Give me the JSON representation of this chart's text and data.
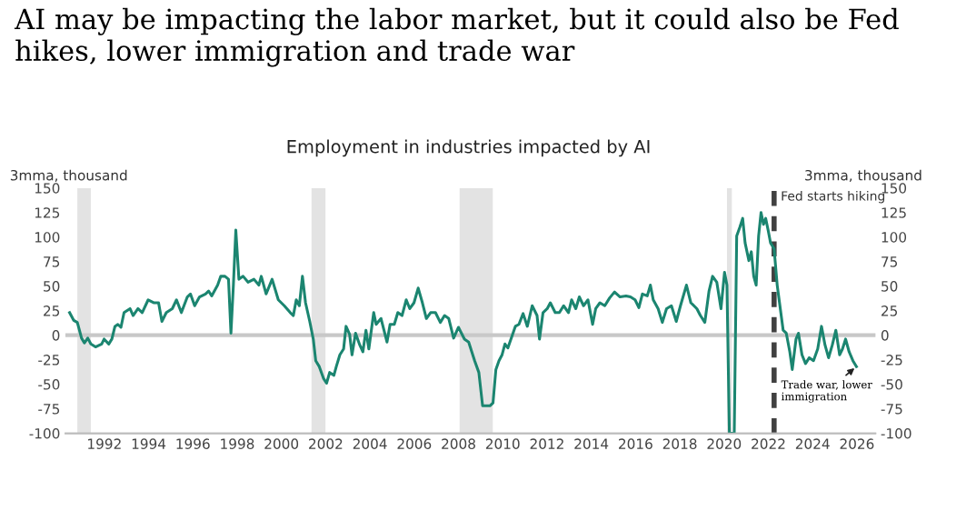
{
  "chart_data": {
    "type": "line",
    "title": "AI may be impacting the labor market, but it could also be Fed hikes, lower immigration and trade war",
    "subtitle": "Employment in industries impacted by AI",
    "ylabel": "3mma, thousand",
    "y2label": "3mma, thousand",
    "x": [
      1990.43,
      1990.62,
      1990.78,
      1990.97,
      1991.1,
      1991.25,
      1991.39,
      1991.6,
      1991.88,
      1991.99,
      1992.2,
      1992.34,
      1992.48,
      1992.61,
      1992.75,
      1992.89,
      1993.16,
      1993.3,
      1993.52,
      1993.71,
      1993.98,
      1994.25,
      1994.45,
      1994.6,
      1994.8,
      1995.07,
      1995.26,
      1995.48,
      1995.75,
      1995.89,
      1996.08,
      1996.3,
      1996.57,
      1996.71,
      1996.85,
      1997.12,
      1997.26,
      1997.45,
      1997.61,
      1997.72,
      1997.83,
      1997.94,
      1998.08,
      1998.27,
      1998.49,
      1998.76,
      1998.98,
      1999.09,
      1999.31,
      1999.58,
      1999.86,
      2000.13,
      2000.4,
      2000.54,
      2000.67,
      2000.81,
      2000.95,
      2001.09,
      2001.28,
      2001.44,
      2001.55,
      2001.71,
      2001.9,
      2002.04,
      2002.18,
      2002.37,
      2002.48,
      2002.64,
      2002.81,
      2002.92,
      2003.08,
      2003.19,
      2003.35,
      2003.54,
      2003.68,
      2003.82,
      2003.95,
      2004.17,
      2004.28,
      2004.5,
      2004.77,
      2004.91,
      2005.1,
      2005.26,
      2005.45,
      2005.64,
      2005.8,
      2005.99,
      2006.18,
      2006.37,
      2006.55,
      2006.74,
      2006.96,
      2007.18,
      2007.37,
      2007.56,
      2007.78,
      2008.0,
      2008.27,
      2008.46,
      2008.73,
      2008.92,
      2009.09,
      2009.3,
      2009.42,
      2009.56,
      2009.69,
      2009.83,
      2009.97,
      2010.1,
      2010.23,
      2010.37,
      2010.57,
      2010.73,
      2010.92,
      2011.11,
      2011.33,
      2011.55,
      2011.66,
      2011.82,
      2012.01,
      2012.15,
      2012.37,
      2012.56,
      2012.75,
      2012.97,
      2013.11,
      2013.3,
      2013.46,
      2013.65,
      2013.85,
      2014.06,
      2014.2,
      2014.39,
      2014.61,
      2014.83,
      2015.05,
      2015.3,
      2015.57,
      2015.77,
      2015.98,
      2016.15,
      2016.31,
      2016.53,
      2016.67,
      2016.8,
      2017.02,
      2017.21,
      2017.4,
      2017.62,
      2017.84,
      2018.03,
      2018.3,
      2018.5,
      2018.77,
      2018.93,
      2019.13,
      2019.32,
      2019.48,
      2019.67,
      2019.86,
      2020.02,
      2020.13,
      2020.24,
      2020.35,
      2020.46,
      2020.57,
      2020.71,
      2020.84,
      2020.95,
      2021.12,
      2021.23,
      2021.34,
      2021.45,
      2021.56,
      2021.67,
      2021.78,
      2021.88,
      2021.99,
      2022.1,
      2022.26,
      2022.4,
      2022.54,
      2022.67,
      2022.81,
      2022.97,
      2023.08,
      2023.25,
      2023.36,
      2023.52,
      2023.68,
      2023.85,
      2024.04,
      2024.23,
      2024.4,
      2024.56,
      2024.72,
      2024.89,
      2025.05,
      2025.22,
      2025.35,
      2025.49,
      2025.65,
      2025.82,
      2025.98
    ],
    "series": [
      {
        "color": "#1b8570",
        "values": [
          23,
          15,
          13,
          -3,
          -8,
          -3,
          -9,
          -12,
          -9,
          -4,
          -9,
          -4,
          9,
          11,
          8,
          23,
          27,
          20,
          27,
          23,
          36,
          33,
          33,
          14,
          23,
          27,
          36,
          23,
          39,
          42,
          30,
          39,
          42,
          45,
          40,
          51,
          60,
          60,
          57,
          2,
          51,
          107,
          57,
          60,
          54,
          57,
          51,
          60,
          42,
          57,
          36,
          30,
          23,
          20,
          36,
          30,
          60,
          33,
          14,
          -4,
          -26,
          -32,
          -44,
          -49,
          -38,
          -41,
          -32,
          -20,
          -14,
          9,
          1,
          -20,
          2,
          -10,
          -17,
          5,
          -14,
          23,
          11,
          17,
          -7,
          11,
          11,
          23,
          20,
          36,
          27,
          33,
          48,
          33,
          17,
          23,
          23,
          13,
          20,
          17,
          -3,
          8,
          -4,
          -7,
          -26,
          -38,
          -72,
          -72,
          -72,
          -69,
          -35,
          -26,
          -20,
          -9,
          -13,
          -4,
          9,
          11,
          22,
          9,
          30,
          20,
          -4,
          23,
          27,
          33,
          23,
          23,
          30,
          23,
          36,
          27,
          39,
          30,
          36,
          11,
          27,
          33,
          30,
          38,
          44,
          39,
          40,
          39,
          36,
          28,
          42,
          40,
          51,
          36,
          27,
          13,
          27,
          30,
          14,
          30,
          51,
          33,
          27,
          20,
          13,
          45,
          60,
          54,
          27,
          64,
          51,
          -100,
          -100,
          -100,
          101,
          110,
          119,
          94,
          76,
          85,
          60,
          51,
          101,
          125,
          113,
          119,
          107,
          94,
          88,
          51,
          27,
          5,
          2,
          -17,
          -35,
          -4,
          2,
          -20,
          -29,
          -23,
          -26,
          -14,
          9,
          -10,
          -23,
          -10,
          5,
          -20,
          -14,
          -4,
          -17,
          -26,
          -32
        ]
      }
    ],
    "xlim": [
      1990.24,
      2026.84
    ],
    "xticks": [
      1992,
      1994,
      1996,
      1998,
      2000,
      2002,
      2004,
      2006,
      2008,
      2010,
      2012,
      2014,
      2016,
      2018,
      2020,
      2022,
      2024,
      2026
    ],
    "ylim": [
      -100,
      150
    ],
    "yticks": [
      -100,
      -75,
      -50,
      -25,
      0,
      25,
      50,
      75,
      100,
      125,
      150
    ],
    "y2lim": [
      -100,
      150
    ],
    "y2ticks": [
      -100,
      -75,
      -50,
      -25,
      0,
      25,
      50,
      75,
      100,
      125,
      150
    ],
    "bands": [
      {
        "axis": "x",
        "from": 1990.78,
        "to": 1991.39,
        "color": "#e3e3e3"
      },
      {
        "axis": "x",
        "from": 2001.36,
        "to": 2001.99,
        "color": "#e3e3e3"
      },
      {
        "axis": "x",
        "from": 2008.05,
        "to": 2009.55,
        "color": "#e3e3e3"
      },
      {
        "axis": "x",
        "from": 2020.13,
        "to": 2020.35,
        "color": "#e3e3e3"
      }
    ],
    "ref_lines": [
      {
        "axis": "y",
        "value": 0,
        "color": "#c8c8c8",
        "line_style": "solid"
      },
      {
        "axis": "x",
        "value": 2022.26,
        "label": "Fed starts hiking",
        "color": "#404040",
        "line_style": "dashed"
      }
    ],
    "annotations": [
      {
        "text": "Trade war, lower\nimmigration",
        "x": 2025.98,
        "y": -32
      }
    ],
    "grid": false,
    "legend": false,
    "marker": "none",
    "line_style": "solid"
  }
}
